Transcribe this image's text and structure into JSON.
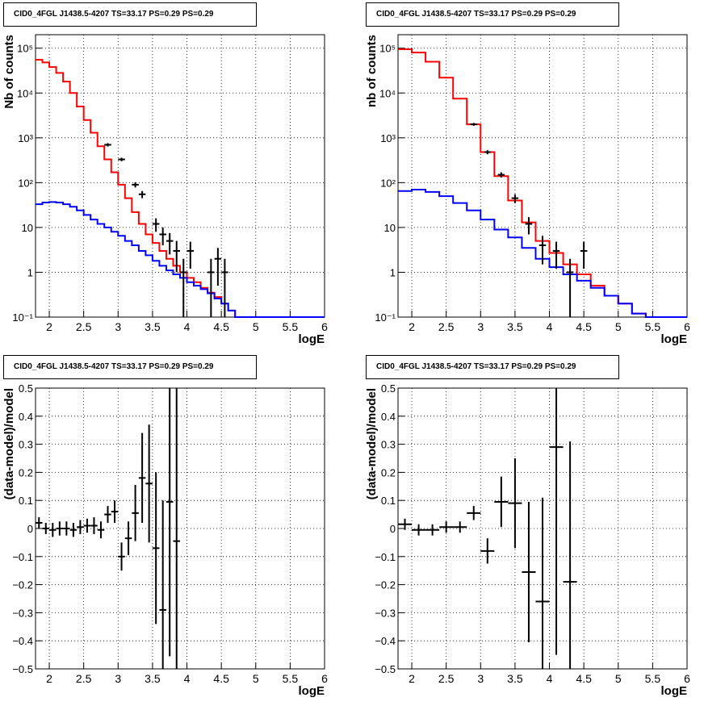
{
  "chart_data": [
    {
      "type": "line",
      "title": "CID0_4FGL J1438.5-4207 TS=33.17 PS=0.29 PS=0.29",
      "xlabel": "logE",
      "ylabel": "Nb of counts",
      "xlim": [
        1.8,
        6.0
      ],
      "ylim": [
        0.1,
        200000
      ],
      "yscale": "log",
      "grid": true,
      "x_ticks": [
        2,
        2.5,
        3,
        3.5,
        4,
        4.5,
        5,
        5.5,
        6
      ],
      "x_tick_labels": [
        "2",
        "2.5",
        "3",
        "3.5",
        "4",
        "4.5",
        "5",
        "5.5",
        "6"
      ],
      "y_ticks": [
        0.1,
        1,
        10,
        100,
        1000,
        10000,
        100000
      ],
      "y_tick_labels": [
        "10⁻¹",
        "1",
        "10",
        "10²",
        "10³",
        "10⁴",
        "10⁵"
      ],
      "bin_edges": [
        1.8,
        1.9,
        2.0,
        2.1,
        2.2,
        2.3,
        2.4,
        2.5,
        2.6,
        2.7,
        2.8,
        2.9,
        3.0,
        3.1,
        3.2,
        3.3,
        3.4,
        3.5,
        3.6,
        3.7,
        3.8,
        3.9,
        4.0,
        4.1,
        4.2,
        4.3,
        4.4,
        4.5,
        4.6,
        4.7,
        4.8,
        4.9,
        5.0,
        5.1,
        5.2,
        5.3,
        5.4,
        5.5,
        5.6,
        5.7,
        5.8,
        5.9,
        6.0
      ],
      "series": [
        {
          "color": "#ff0000",
          "style": "step",
          "values": [
            55000,
            48000,
            38000,
            28000,
            18000,
            10000,
            5000,
            2500,
            1300,
            650,
            330,
            170,
            90,
            45,
            22,
            12,
            7,
            4.5,
            3,
            2,
            1.4,
            1.0,
            0.75,
            0.6,
            0.45,
            0.35,
            0.28,
            0.2,
            0.14,
            0.1,
            0.1,
            0.1,
            0.1,
            0.1,
            0.1,
            0.1,
            0.1,
            0.1,
            0.1,
            0.1,
            0.1,
            0.1
          ]
        },
        {
          "color": "#0000ff",
          "style": "step",
          "values": [
            33,
            36,
            37,
            36,
            33,
            29,
            24,
            19,
            15,
            12,
            10,
            8,
            6.5,
            5,
            4,
            3,
            2.4,
            1.8,
            1.4,
            1.1,
            0.9,
            0.75,
            0.6,
            0.5,
            0.42,
            0.34,
            0.26,
            0.2,
            0.14,
            0.1,
            0.1,
            0.1,
            0.1,
            0.1,
            0.1,
            0.1,
            0.1,
            0.1,
            0.1,
            0.1,
            0.1,
            0.1
          ]
        },
        {
          "color": "#000000",
          "style": "errorbar",
          "points": [
            {
              "x": 2.85,
              "y": 700,
              "yerr": 60
            },
            {
              "x": 3.05,
              "y": 330,
              "yerr": 30
            },
            {
              "x": 3.25,
              "y": 90,
              "yerr": 12
            },
            {
              "x": 3.35,
              "y": 55,
              "yerr": 10
            },
            {
              "x": 3.55,
              "y": 12,
              "yerr": 4
            },
            {
              "x": 3.65,
              "y": 7,
              "yerr": 3
            },
            {
              "x": 3.75,
              "y": 5,
              "yerr": 2.5
            },
            {
              "x": 3.85,
              "y": 3,
              "yerr": 2
            },
            {
              "x": 3.95,
              "y": 1,
              "yerr": 1
            },
            {
              "x": 4.05,
              "y": 3,
              "yerr": 1.8
            },
            {
              "x": 4.35,
              "y": 1,
              "yerr": 1
            },
            {
              "x": 4.45,
              "y": 2,
              "yerr": 1.5
            },
            {
              "x": 4.55,
              "y": 1,
              "yerr": 1
            }
          ]
        }
      ]
    },
    {
      "type": "line",
      "title": "CID0_4FGL J1438.5-4207 TS=33.17 PS=0.29 PS=0.29",
      "xlabel": "logE",
      "ylabel": "nb of counts",
      "xlim": [
        1.8,
        6.0
      ],
      "ylim": [
        0.1,
        200000
      ],
      "yscale": "log",
      "grid": true,
      "x_ticks": [
        2,
        2.5,
        3,
        3.5,
        4,
        4.5,
        5,
        5.5,
        6
      ],
      "x_tick_labels": [
        "2",
        "2.5",
        "3",
        "3.5",
        "4",
        "4.5",
        "5",
        "5.5",
        "6"
      ],
      "y_ticks": [
        0.1,
        1,
        10,
        100,
        1000,
        10000,
        100000
      ],
      "y_tick_labels": [
        "10⁻¹",
        "1",
        "10",
        "10²",
        "10³",
        "10⁴",
        "10⁵"
      ],
      "bin_edges": [
        1.8,
        2.0,
        2.2,
        2.4,
        2.6,
        2.8,
        3.0,
        3.2,
        3.4,
        3.6,
        3.8,
        4.0,
        4.2,
        4.4,
        4.6,
        4.8,
        5.0,
        5.2,
        5.4,
        5.6,
        5.8,
        6.0
      ],
      "series": [
        {
          "color": "#ff0000",
          "style": "step",
          "values": [
            95000,
            80000,
            50000,
            22000,
            7500,
            2000,
            480,
            140,
            40,
            13,
            5,
            2.7,
            1.5,
            0.9,
            0.5,
            0.3,
            0.2,
            0.12,
            0.1,
            0.1,
            0.1
          ]
        },
        {
          "color": "#0000ff",
          "style": "step",
          "values": [
            65,
            70,
            62,
            50,
            35,
            24,
            15,
            9,
            6,
            3.5,
            2,
            1.3,
            0.9,
            0.65,
            0.45,
            0.3,
            0.2,
            0.12,
            0.1,
            0.1,
            0.1
          ]
        },
        {
          "color": "#000000",
          "style": "errorbar",
          "points": [
            {
              "x": 2.9,
              "y": 2000,
              "yerr": 150
            },
            {
              "x": 3.1,
              "y": 480,
              "yerr": 50
            },
            {
              "x": 3.3,
              "y": 150,
              "yerr": 20
            },
            {
              "x": 3.5,
              "y": 45,
              "yerr": 10
            },
            {
              "x": 3.7,
              "y": 12,
              "yerr": 5
            },
            {
              "x": 3.9,
              "y": 4,
              "yerr": 2.5
            },
            {
              "x": 4.1,
              "y": 3,
              "yerr": 1.8
            },
            {
              "x": 4.3,
              "y": 1,
              "yerr": 1
            },
            {
              "x": 4.5,
              "y": 3,
              "yerr": 1.8
            }
          ]
        }
      ]
    },
    {
      "type": "scatter",
      "title": "CID0_4FGL J1438.5-4207 TS=33.17 PS=0.29 PS=0.29",
      "xlabel": "logE",
      "ylabel": "(data-model)/model",
      "xlim": [
        1.8,
        6.0
      ],
      "ylim": [
        -0.5,
        0.5
      ],
      "grid": true,
      "x_ticks": [
        2,
        2.5,
        3,
        3.5,
        4,
        4.5,
        5,
        5.5,
        6
      ],
      "x_tick_labels": [
        "2",
        "2.5",
        "3",
        "3.5",
        "4",
        "4.5",
        "5",
        "5.5",
        "6"
      ],
      "y_ticks": [
        -0.5,
        -0.4,
        -0.3,
        -0.2,
        -0.1,
        0,
        0.1,
        0.2,
        0.3,
        0.4,
        0.5
      ],
      "y_tick_labels": [
        "−0.5",
        "−0.4",
        "−0.3",
        "−0.2",
        "−0.1",
        "0",
        "0.1",
        "0.2",
        "0.3",
        "0.4",
        "0.5"
      ],
      "xerr": 0.05,
      "series": [
        {
          "color": "#000000",
          "style": "errorbar",
          "points": [
            {
              "x": 1.85,
              "y": 0.02,
              "yerr": 0.02
            },
            {
              "x": 1.95,
              "y": 0.0,
              "yerr": 0.02
            },
            {
              "x": 2.05,
              "y": -0.005,
              "yerr": 0.025
            },
            {
              "x": 2.15,
              "y": 0.0,
              "yerr": 0.025
            },
            {
              "x": 2.25,
              "y": 0.0,
              "yerr": 0.025
            },
            {
              "x": 2.35,
              "y": -0.005,
              "yerr": 0.025
            },
            {
              "x": 2.45,
              "y": 0.005,
              "yerr": 0.025
            },
            {
              "x": 2.55,
              "y": 0.01,
              "yerr": 0.025
            },
            {
              "x": 2.65,
              "y": 0.01,
              "yerr": 0.03
            },
            {
              "x": 2.75,
              "y": -0.005,
              "yerr": 0.03
            },
            {
              "x": 2.85,
              "y": 0.05,
              "yerr": 0.03
            },
            {
              "x": 2.95,
              "y": 0.06,
              "yerr": 0.04
            },
            {
              "x": 3.05,
              "y": -0.1,
              "yerr": 0.05
            },
            {
              "x": 3.15,
              "y": -0.035,
              "yerr": 0.06
            },
            {
              "x": 3.25,
              "y": 0.055,
              "yerr": 0.1
            },
            {
              "x": 3.35,
              "y": 0.18,
              "yerr": 0.16
            },
            {
              "x": 3.45,
              "y": 0.16,
              "yerr": 0.21
            },
            {
              "x": 3.55,
              "y": -0.07,
              "yerr": 0.27
            },
            {
              "x": 3.65,
              "y": -0.29,
              "yerr": 0.39
            },
            {
              "x": 3.75,
              "y": 0.095,
              "yerr": 0.55
            },
            {
              "x": 3.85,
              "y": -0.045,
              "yerr": 0.55
            }
          ]
        }
      ]
    },
    {
      "type": "scatter",
      "title": "CID0_4FGL J1438.5-4207 TS=33.17 PS=0.29 PS=0.29",
      "xlabel": "logE",
      "ylabel": "(data-model)/model",
      "xlim": [
        1.8,
        6.0
      ],
      "ylim": [
        -0.5,
        0.5
      ],
      "grid": true,
      "x_ticks": [
        2,
        2.5,
        3,
        3.5,
        4,
        4.5,
        5,
        5.5,
        6
      ],
      "x_tick_labels": [
        "2",
        "2.5",
        "3",
        "3.5",
        "4",
        "4.5",
        "5",
        "5.5",
        "6"
      ],
      "y_ticks": [
        -0.5,
        -0.4,
        -0.3,
        -0.2,
        -0.1,
        0,
        0.1,
        0.2,
        0.3,
        0.4,
        0.5
      ],
      "y_tick_labels": [
        "−0.5",
        "−0.4",
        "−0.3",
        "−0.2",
        "−0.1",
        "0",
        "0.1",
        "0.2",
        "0.3",
        "0.4",
        "0.5"
      ],
      "xerr": 0.1,
      "series": [
        {
          "color": "#000000",
          "style": "errorbar",
          "points": [
            {
              "x": 1.9,
              "y": 0.015,
              "yerr": 0.02
            },
            {
              "x": 2.1,
              "y": -0.005,
              "yerr": 0.02
            },
            {
              "x": 2.3,
              "y": -0.005,
              "yerr": 0.02
            },
            {
              "x": 2.5,
              "y": 0.005,
              "yerr": 0.02
            },
            {
              "x": 2.7,
              "y": 0.005,
              "yerr": 0.02
            },
            {
              "x": 2.9,
              "y": 0.055,
              "yerr": 0.025
            },
            {
              "x": 3.1,
              "y": -0.08,
              "yerr": 0.045
            },
            {
              "x": 3.3,
              "y": 0.095,
              "yerr": 0.09
            },
            {
              "x": 3.5,
              "y": 0.09,
              "yerr": 0.16
            },
            {
              "x": 3.7,
              "y": -0.155,
              "yerr": 0.25
            },
            {
              "x": 3.9,
              "y": -0.26,
              "yerr": 0.37
            },
            {
              "x": 4.1,
              "y": 0.29,
              "yerr": 0.74
            },
            {
              "x": 4.3,
              "y": -0.19,
              "yerr": 0.5
            }
          ]
        }
      ]
    }
  ]
}
